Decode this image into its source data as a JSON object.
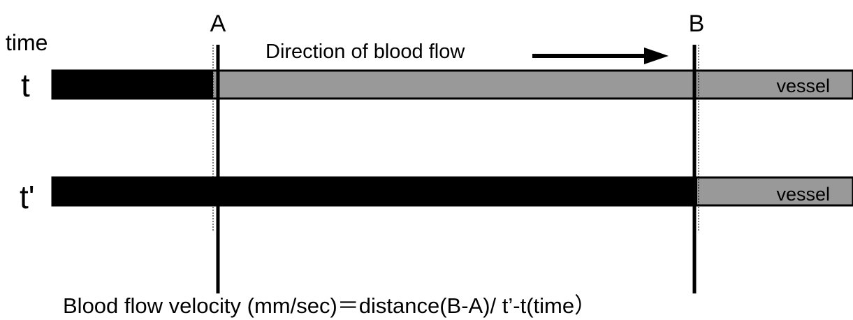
{
  "diagram": {
    "time_label": "time",
    "points": [
      "A",
      "B"
    ],
    "rows": [
      {
        "label": "t",
        "vessel_label": "vessel"
      },
      {
        "label": "t'",
        "vessel_label": "vessel"
      }
    ],
    "direction": "Direction of blood flow",
    "formula": "Blood flow velocity (mm/sec)＝distance(B-A)/ t’-t(time）"
  }
}
